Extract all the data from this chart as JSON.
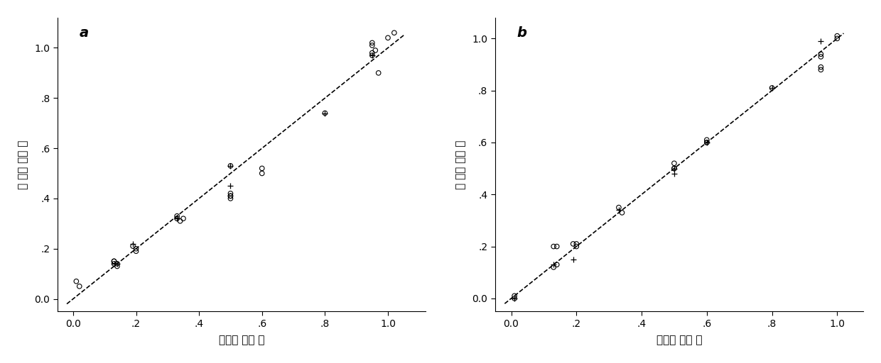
{
  "panel_a": {
    "label": "a",
    "xlabel": "真实浓 度比 率",
    "ylabel": "预 测浓 度比 率",
    "xlim": [
      -0.05,
      1.12
    ],
    "ylim": [
      -0.05,
      1.12
    ],
    "xticks": [
      0.0,
      0.2,
      0.4,
      0.6,
      0.8,
      1.0
    ],
    "yticks": [
      0.0,
      0.2,
      0.4,
      0.6,
      0.8,
      1.0
    ],
    "xticklabels": [
      "0.0",
      ".2",
      ".4",
      ".6",
      ".8",
      "1.0"
    ],
    "yticklabels": [
      "0.0",
      ".2",
      ".4",
      ".6",
      ".8",
      "1.0"
    ],
    "line_x": [
      -0.02,
      1.05
    ],
    "line_y": [
      -0.02,
      1.05
    ],
    "circles_x": [
      0.01,
      0.02,
      0.13,
      0.13,
      0.13,
      0.14,
      0.14,
      0.19,
      0.2,
      0.2,
      0.33,
      0.33,
      0.34,
      0.35,
      0.5,
      0.5,
      0.5,
      0.5,
      0.5,
      0.6,
      0.6,
      0.8,
      0.95,
      0.95,
      0.95,
      0.95,
      0.96,
      0.97,
      1.0,
      1.02
    ],
    "circles_y": [
      0.07,
      0.05,
      0.14,
      0.15,
      0.15,
      0.13,
      0.14,
      0.21,
      0.2,
      0.19,
      0.32,
      0.33,
      0.31,
      0.32,
      0.41,
      0.42,
      0.4,
      0.41,
      0.53,
      0.52,
      0.5,
      0.74,
      0.98,
      0.97,
      1.01,
      1.02,
      0.99,
      0.9,
      1.04,
      1.06
    ],
    "plus_x": [
      0.13,
      0.14,
      0.19,
      0.33,
      0.5,
      0.5,
      0.8,
      0.95
    ],
    "plus_y": [
      0.14,
      0.14,
      0.22,
      0.32,
      0.45,
      0.53,
      0.74,
      0.97
    ]
  },
  "panel_b": {
    "label": "b",
    "xlabel": "真实浓 度比 率",
    "ylabel": "预 测浓 度比 率",
    "xlim": [
      -0.05,
      1.08
    ],
    "ylim": [
      -0.05,
      1.08
    ],
    "xticks": [
      0.0,
      0.2,
      0.4,
      0.6,
      0.8,
      1.0
    ],
    "yticks": [
      0.0,
      0.2,
      0.4,
      0.6,
      0.8,
      1.0
    ],
    "xticklabels": [
      "0.0",
      ".2",
      ".4",
      ".6",
      ".8",
      "1.0"
    ],
    "yticklabels": [
      "0.0",
      ".2",
      ".4",
      ".6",
      ".8",
      "1.0"
    ],
    "line_x": [
      -0.02,
      1.02
    ],
    "line_y": [
      -0.02,
      1.02
    ],
    "circles_x": [
      0.01,
      0.01,
      0.13,
      0.13,
      0.14,
      0.14,
      0.19,
      0.2,
      0.2,
      0.33,
      0.34,
      0.5,
      0.5,
      0.5,
      0.6,
      0.6,
      0.6,
      0.8,
      0.95,
      0.95,
      0.95,
      0.95,
      1.0,
      1.0
    ],
    "circles_y": [
      0.01,
      0.0,
      0.12,
      0.2,
      0.13,
      0.2,
      0.21,
      0.21,
      0.2,
      0.35,
      0.33,
      0.5,
      0.52,
      0.5,
      0.6,
      0.61,
      0.6,
      0.81,
      0.94,
      0.93,
      0.89,
      0.88,
      1.0,
      1.01
    ],
    "plus_x": [
      0.01,
      0.13,
      0.19,
      0.33,
      0.5,
      0.5,
      0.6,
      0.8,
      0.95
    ],
    "plus_y": [
      0.0,
      0.13,
      0.15,
      0.34,
      0.48,
      0.5,
      0.6,
      0.81,
      0.99
    ]
  },
  "background_color": "#ffffff",
  "line_color": "#000000",
  "marker_color": "#000000",
  "fontsize_label": 11,
  "fontsize_tick": 10,
  "fontsize_panel": 14
}
